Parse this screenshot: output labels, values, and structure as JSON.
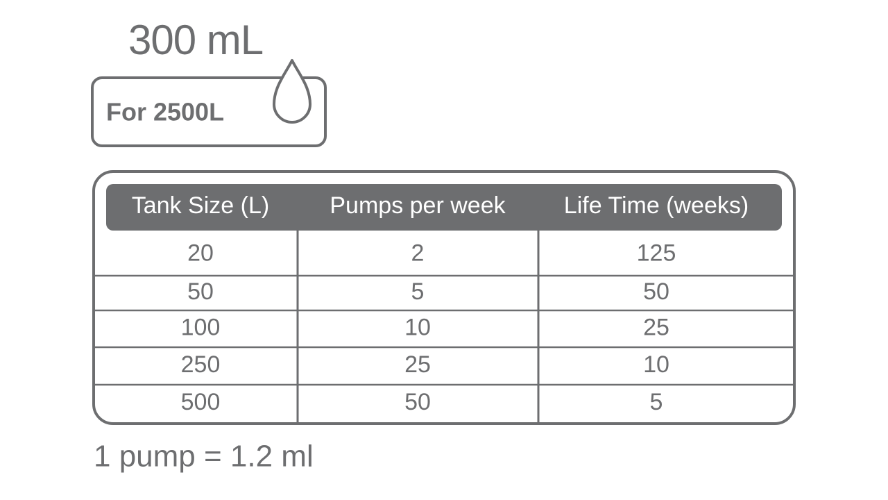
{
  "header": {
    "volume": "300 mL",
    "badge": "For 2500L"
  },
  "table": {
    "columns": [
      "Tank Size (L)",
      "Pumps per week",
      "Life Time (weeks)"
    ],
    "rows": [
      [
        20,
        2,
        125
      ],
      [
        50,
        5,
        50
      ],
      [
        100,
        10,
        25
      ],
      [
        250,
        25,
        10
      ],
      [
        500,
        50,
        5
      ]
    ]
  },
  "footer": {
    "note": "1 pump = 1.2 ml"
  }
}
